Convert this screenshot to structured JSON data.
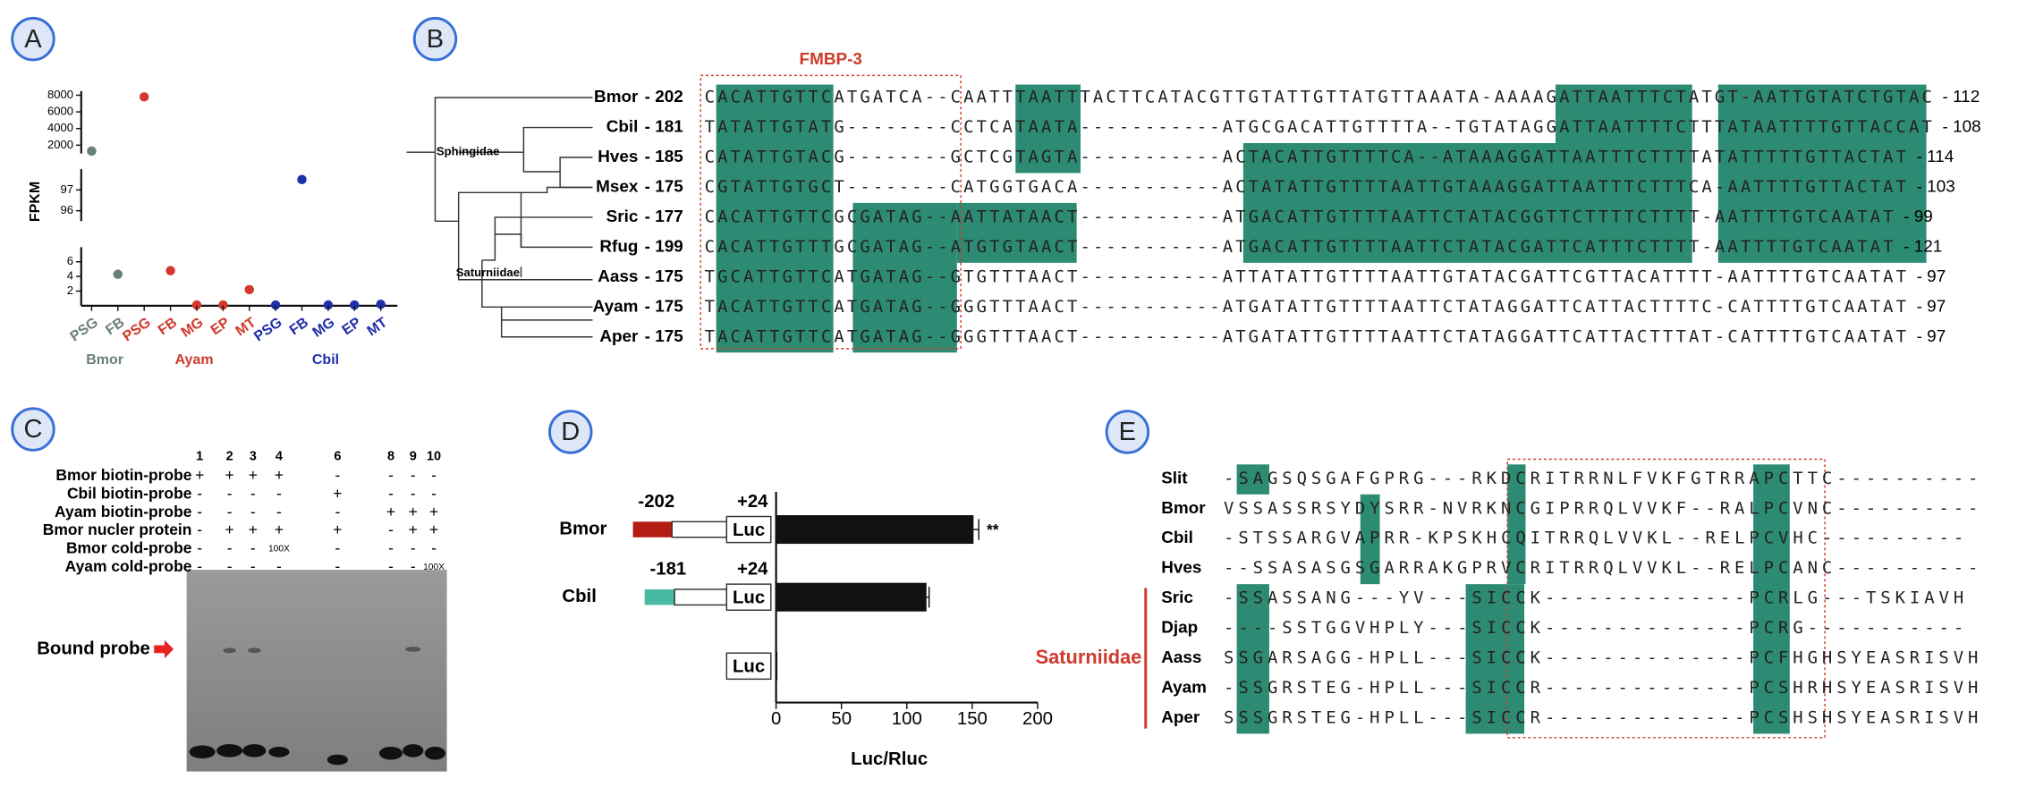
{
  "panel_labels": [
    "A",
    "B",
    "C",
    "D",
    "E"
  ],
  "chart_data": [
    {
      "type": "scatter",
      "ylabel": "FPKM",
      "y_segments": [
        {
          "ylim": [
            0,
            8
          ],
          "yticks": [
            2,
            4,
            6
          ]
        },
        {
          "ylim": [
            95.5,
            98
          ],
          "yticks": [
            96,
            97
          ]
        },
        {
          "ylim": [
            1000,
            8500
          ],
          "yticks": [
            2000,
            4000,
            6000,
            8000
          ]
        }
      ],
      "series": [
        {
          "name": "Bmor",
          "color": "#6b7f79",
          "categories": [
            "PSG",
            "FB"
          ],
          "values": [
            1300,
            4.3
          ]
        },
        {
          "name": "Ayam",
          "color": "#d0392b",
          "categories": [
            "PSG",
            "FB",
            "MG",
            "EP",
            "MT"
          ],
          "values": [
            7800,
            4.8,
            0.1,
            0.1,
            2.2
          ]
        },
        {
          "name": "Cbil",
          "color": "#1f2fa8",
          "categories": [
            "PSG",
            "FB",
            "MG",
            "EP",
            "MT"
          ],
          "values": [
            0.1,
            97.5,
            0.1,
            0.1,
            0.2
          ]
        }
      ]
    },
    {
      "type": "bar",
      "orientation": "horizontal",
      "xlabel": "Luc/Rluc",
      "categories": [
        "Bmor",
        "Cbil",
        null
      ],
      "values": [
        151,
        115,
        1
      ],
      "errors": [
        4,
        2,
        null
      ],
      "color": "#111111",
      "xlim": [
        0,
        200
      ],
      "xticks": [
        0,
        50,
        100,
        150,
        200
      ],
      "annotations": [
        {
          "text": "**",
          "index": 0
        }
      ],
      "constructs": [
        {
          "start": "-202",
          "end": "+24",
          "reporter": "Luc",
          "color": "#b51c14"
        },
        {
          "start": "-181",
          "end": "+24",
          "reporter": "Luc",
          "color": "#49b9a5"
        },
        {
          "reporter": "Luc"
        }
      ]
    }
  ],
  "alignment_b": {
    "title": "FMBP-3",
    "clades": [
      "Sphingidae",
      "Saturniidae"
    ],
    "rows": [
      {
        "name": "Bmor",
        "start": "- 202",
        "seq": "CACATTGTTCATGATCA--CAATTTAATTTACTTCATACGTTGTATTGTTATGTTAAATA-AAAAGATTAATTTCTATGT-AATTGTATCTGTAC",
        "end": "- 112"
      },
      {
        "name": "Cbil",
        "start": "- 181",
        "seq": "TATATTGTATG--------CCTCATAATA-----------ATGCGACATTGTTTTA--TGTATAGGATTAATTTTCTTTATAATTTTGTTACCAT",
        "end": "- 108"
      },
      {
        "name": "Hves",
        "start": "- 185",
        "seq": "CATATTGTACG--------GCTCGTAGTA-----------ACTACATTGTTTTCA--ATAAAGGATTAATTTCTTTTATATTTTTGTTACTAT",
        "end": "- 114"
      },
      {
        "name": "Msex",
        "start": "- 175",
        "seq": "CGTATTGTGCT--------CATGGTGACA-----------ACTATATTGTTTTAATTGTAAAGGATTAATTTCTTTCA-AATTTTGTTACTAT",
        "end": "- 103"
      },
      {
        "name": "Sric",
        "start": "- 177",
        "seq": "CACATTGTTCGCGATAG--AATTATAACT-----------ATGACATTGTTTTAATTCTATACGGTTCTTTTCTTTT-AATTTTGTCAATAT",
        "end": "- 99"
      },
      {
        "name": "Rfug",
        "start": "- 199",
        "seq": "CACATTGTTTGCGATAG--ATGTGTAACT-----------ATGACATTGTTTTAATTCTATACGATTCATTTCTTTT-AATTTTGTCAATAT",
        "end": "- 121"
      },
      {
        "name": "Aass",
        "start": "- 175",
        "seq": "TGCATTGTTCATGATAG--GTGTTTAACT-----------ATTATATTGTTTTAATTGTATACGATTCGTTACATTTT-AATTTTGTCAATAT",
        "end": "- 97"
      },
      {
        "name": "Ayam",
        "start": "- 175",
        "seq": "TACATTGTTCATGATAG--GGGTTTAACT-----------ATGATATTGTTTTAATTCTATAGGATTCATTACTTTTC-CATTTTGTCAATAT",
        "end": "- 97"
      },
      {
        "name": "Aper",
        "start": "- 175",
        "seq": "TACATTGTTCATGATAG--GGGTTTAACT-----------ATGATATTGTTTTAATTCTATAGGATTCATTACTTTAT-CATTTTGTCAATAT",
        "end": "- 97"
      }
    ]
  },
  "emsa_c": {
    "lanes": [
      "1",
      "2",
      "3",
      "4",
      "6",
      "8",
      "9",
      "10"
    ],
    "band_label": "Bound probe",
    "rows": [
      {
        "label": "Bmor biotin-probe",
        "marks": [
          "+",
          "+",
          "+",
          "+",
          "-",
          "-",
          "-",
          "-"
        ]
      },
      {
        "label": "Cbil biotin-probe",
        "marks": [
          "-",
          "-",
          "-",
          "-",
          "+",
          "-",
          "-",
          "-"
        ]
      },
      {
        "label": "Ayam biotin-probe",
        "marks": [
          "-",
          "-",
          "-",
          "-",
          "-",
          "+",
          "+",
          "+"
        ]
      },
      {
        "label": "Bmor  nucler protein",
        "marks": [
          "-",
          "+",
          "+",
          "+",
          "+",
          "-",
          "+",
          "+"
        ]
      },
      {
        "label": "Bmor  cold-probe",
        "marks": [
          "-",
          "-",
          "-",
          "100X",
          "-",
          "-",
          "-",
          "-"
        ]
      },
      {
        "label": "Ayam  cold-probe",
        "marks": [
          "-",
          "-",
          "-",
          "-",
          "-",
          "-",
          "-",
          "100X"
        ]
      }
    ]
  },
  "alignment_e": {
    "clade": "Saturniidae",
    "rows": [
      {
        "name": "Slit",
        "seq": "-SAGSQSGAFGPRG---RKDCRITRRNLFVKFGTRRAPCTTC----------"
      },
      {
        "name": "Bmor",
        "seq": "VSSASSRSYDYSRR-NVRKNCGIPRRQLVVKF--RALPCVNC----------"
      },
      {
        "name": "Cbil",
        "seq": "-STSSARGVAPRR-KPSKHCQITRRQLVVKL--RELPCVHC----------"
      },
      {
        "name": "Hves",
        "seq": "--SSASASGSGARRAKGPRVCRITRRQLVVKL--RELPCANC----------"
      },
      {
        "name": "Sric",
        "seq": "-SSASSANG---YV---SICCK--------------PCRLG---TSKIAVH"
      },
      {
        "name": "Djap",
        "seq": "----SSTGGVHPLY---SICCK--------------PCRG-----------"
      },
      {
        "name": "Aass",
        "seq": "SSGARSAGG-HPLL---SICCK--------------PCFHGHSYEASRISVH"
      },
      {
        "name": "Ayam",
        "seq": "-SSGRSTEG-HPLL---SICCR--------------PCSHRHSYEASRISVH"
      },
      {
        "name": "Aper",
        "seq": "SSSGRSTEG-HPLL---SICCR--------------PCSHSHSYEASRISVH"
      }
    ]
  }
}
